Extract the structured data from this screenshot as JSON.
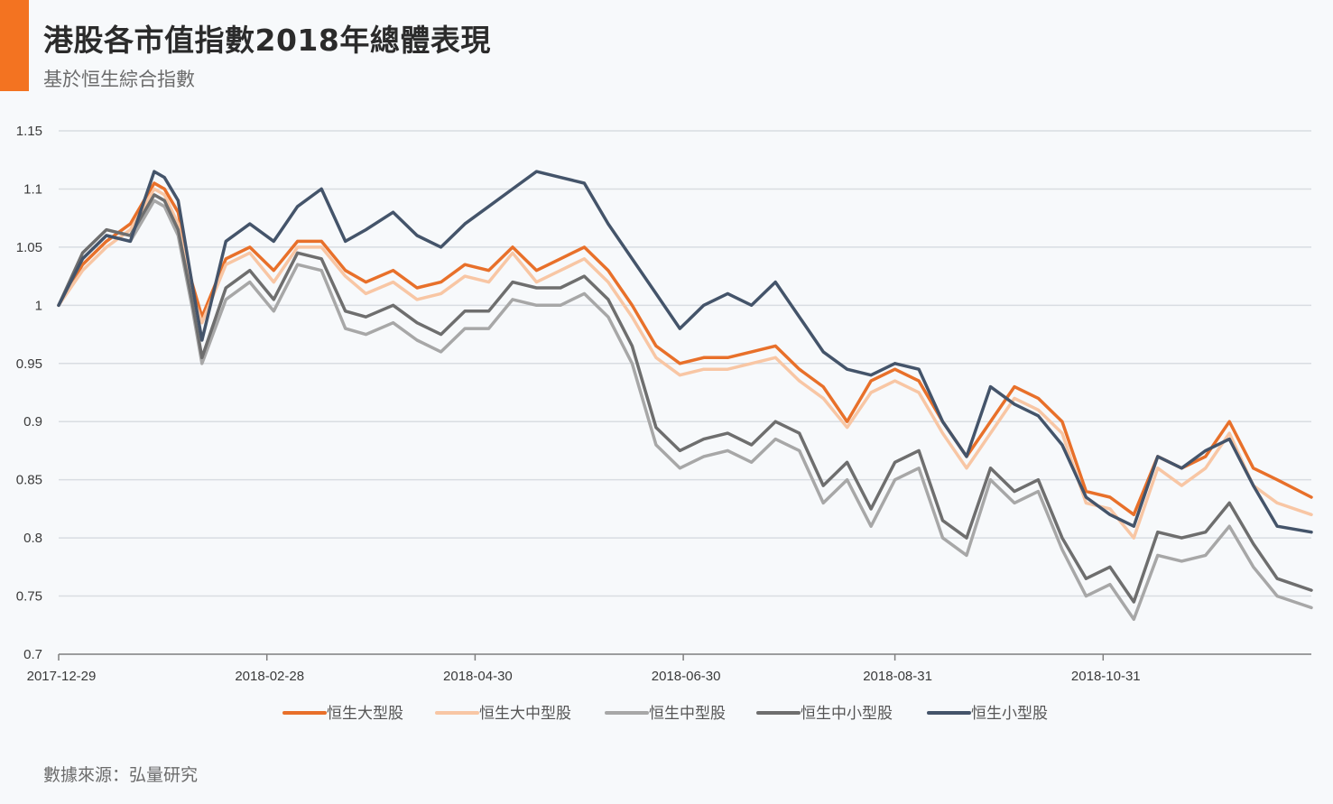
{
  "header": {
    "title": "港股各市值指數2018年總體表現",
    "subtitle": "基於恒生綜合指數"
  },
  "footer": {
    "source": "數據來源：弘量研究"
  },
  "colors": {
    "accent": "#f37321",
    "grid": "#d9dde2",
    "axis": "#7f7f7f"
  },
  "chart_data": {
    "type": "line",
    "ylim": [
      0.7,
      1.15
    ],
    "yticks": [
      0.7,
      0.75,
      0.8,
      0.85,
      0.9,
      0.95,
      1,
      1.05,
      1.1,
      1.15
    ],
    "ytick_labels": [
      "0.7",
      "0.75",
      "0.8",
      "0.85",
      "0.9",
      "0.95",
      "1",
      "1.05",
      "1.1",
      "1.15"
    ],
    "xlim": [
      "2017-12-29",
      "2018-12-31"
    ],
    "xticks": [
      "2017-12-29",
      "2018-02-28",
      "2018-04-30",
      "2018-06-30",
      "2018-08-31",
      "2018-10-31"
    ],
    "xtick_labels": [
      "2017-12-29",
      "2018-02-28",
      "2018-04-30",
      "2018-06-30",
      "2018-08-31",
      "2018-10-31"
    ],
    "grid": true,
    "legend": "bottom",
    "series": [
      {
        "name": "恒生大型股",
        "color": "#e8702a",
        "x": [
          "2017-12-29",
          "2018-01-05",
          "2018-01-12",
          "2018-01-19",
          "2018-01-26",
          "2018-01-29",
          "2018-02-02",
          "2018-02-06",
          "2018-02-09",
          "2018-02-16",
          "2018-02-23",
          "2018-03-02",
          "2018-03-09",
          "2018-03-16",
          "2018-03-23",
          "2018-03-29",
          "2018-04-06",
          "2018-04-13",
          "2018-04-20",
          "2018-04-27",
          "2018-05-04",
          "2018-05-11",
          "2018-05-18",
          "2018-05-25",
          "2018-06-01",
          "2018-06-08",
          "2018-06-15",
          "2018-06-22",
          "2018-06-29",
          "2018-07-06",
          "2018-07-13",
          "2018-07-20",
          "2018-07-27",
          "2018-08-03",
          "2018-08-10",
          "2018-08-17",
          "2018-08-24",
          "2018-08-31",
          "2018-09-07",
          "2018-09-14",
          "2018-09-21",
          "2018-09-28",
          "2018-10-05",
          "2018-10-12",
          "2018-10-19",
          "2018-10-26",
          "2018-11-02",
          "2018-11-09",
          "2018-11-16",
          "2018-11-23",
          "2018-11-30",
          "2018-12-07",
          "2018-12-14",
          "2018-12-21",
          "2018-12-31"
        ],
        "values": [
          1.0,
          1.035,
          1.055,
          1.07,
          1.105,
          1.1,
          1.08,
          1.02,
          0.99,
          1.04,
          1.05,
          1.03,
          1.055,
          1.055,
          1.03,
          1.02,
          1.03,
          1.015,
          1.02,
          1.035,
          1.03,
          1.05,
          1.03,
          1.04,
          1.05,
          1.03,
          1.0,
          0.965,
          0.95,
          0.955,
          0.955,
          0.96,
          0.965,
          0.945,
          0.93,
          0.9,
          0.935,
          0.945,
          0.935,
          0.9,
          0.87,
          0.9,
          0.93,
          0.92,
          0.9,
          0.84,
          0.835,
          0.82,
          0.87,
          0.86,
          0.87,
          0.9,
          0.86,
          0.85,
          0.835
        ]
      },
      {
        "name": "恒生大中型股",
        "color": "#f8c6a4",
        "x": [
          "2017-12-29",
          "2018-01-05",
          "2018-01-12",
          "2018-01-19",
          "2018-01-26",
          "2018-01-29",
          "2018-02-02",
          "2018-02-06",
          "2018-02-09",
          "2018-02-16",
          "2018-02-23",
          "2018-03-02",
          "2018-03-09",
          "2018-03-16",
          "2018-03-23",
          "2018-03-29",
          "2018-04-06",
          "2018-04-13",
          "2018-04-20",
          "2018-04-27",
          "2018-05-04",
          "2018-05-11",
          "2018-05-18",
          "2018-05-25",
          "2018-06-01",
          "2018-06-08",
          "2018-06-15",
          "2018-06-22",
          "2018-06-29",
          "2018-07-06",
          "2018-07-13",
          "2018-07-20",
          "2018-07-27",
          "2018-08-03",
          "2018-08-10",
          "2018-08-17",
          "2018-08-24",
          "2018-08-31",
          "2018-09-07",
          "2018-09-14",
          "2018-09-21",
          "2018-09-28",
          "2018-10-05",
          "2018-10-12",
          "2018-10-19",
          "2018-10-26",
          "2018-11-02",
          "2018-11-09",
          "2018-11-16",
          "2018-11-23",
          "2018-11-30",
          "2018-12-07",
          "2018-12-14",
          "2018-12-21",
          "2018-12-31"
        ],
        "values": [
          1.0,
          1.03,
          1.05,
          1.065,
          1.1,
          1.095,
          1.07,
          1.01,
          0.985,
          1.035,
          1.045,
          1.02,
          1.05,
          1.05,
          1.025,
          1.01,
          1.02,
          1.005,
          1.01,
          1.025,
          1.02,
          1.045,
          1.02,
          1.03,
          1.04,
          1.02,
          0.99,
          0.955,
          0.94,
          0.945,
          0.945,
          0.95,
          0.955,
          0.935,
          0.92,
          0.895,
          0.925,
          0.935,
          0.925,
          0.89,
          0.86,
          0.89,
          0.92,
          0.91,
          0.89,
          0.83,
          0.825,
          0.8,
          0.86,
          0.845,
          0.86,
          0.89,
          0.845,
          0.83,
          0.82
        ]
      },
      {
        "name": "恒生中型股",
        "color": "#a7a7a7",
        "x": [
          "2017-12-29",
          "2018-01-05",
          "2018-01-12",
          "2018-01-19",
          "2018-01-26",
          "2018-01-29",
          "2018-02-02",
          "2018-02-06",
          "2018-02-09",
          "2018-02-16",
          "2018-02-23",
          "2018-03-02",
          "2018-03-09",
          "2018-03-16",
          "2018-03-23",
          "2018-03-29",
          "2018-04-06",
          "2018-04-13",
          "2018-04-20",
          "2018-04-27",
          "2018-05-04",
          "2018-05-11",
          "2018-05-18",
          "2018-05-25",
          "2018-06-01",
          "2018-06-08",
          "2018-06-15",
          "2018-06-22",
          "2018-06-29",
          "2018-07-06",
          "2018-07-13",
          "2018-07-20",
          "2018-07-27",
          "2018-08-03",
          "2018-08-10",
          "2018-08-17",
          "2018-08-24",
          "2018-08-31",
          "2018-09-07",
          "2018-09-14",
          "2018-09-21",
          "2018-09-28",
          "2018-10-05",
          "2018-10-12",
          "2018-10-19",
          "2018-10-26",
          "2018-11-02",
          "2018-11-09",
          "2018-11-16",
          "2018-11-23",
          "2018-11-30",
          "2018-12-07",
          "2018-12-14",
          "2018-12-21",
          "2018-12-31"
        ],
        "values": [
          1.0,
          1.04,
          1.06,
          1.055,
          1.09,
          1.085,
          1.06,
          1.0,
          0.95,
          1.005,
          1.02,
          0.995,
          1.035,
          1.03,
          0.98,
          0.975,
          0.985,
          0.97,
          0.96,
          0.98,
          0.98,
          1.005,
          1.0,
          1.0,
          1.01,
          0.99,
          0.95,
          0.88,
          0.86,
          0.87,
          0.875,
          0.865,
          0.885,
          0.875,
          0.83,
          0.85,
          0.81,
          0.85,
          0.86,
          0.8,
          0.785,
          0.85,
          0.83,
          0.84,
          0.79,
          0.75,
          0.76,
          0.73,
          0.785,
          0.78,
          0.785,
          0.81,
          0.775,
          0.75,
          0.74
        ]
      },
      {
        "name": "恒生中小型股",
        "color": "#6e6e6e",
        "x": [
          "2017-12-29",
          "2018-01-05",
          "2018-01-12",
          "2018-01-19",
          "2018-01-26",
          "2018-01-29",
          "2018-02-02",
          "2018-02-06",
          "2018-02-09",
          "2018-02-16",
          "2018-02-23",
          "2018-03-02",
          "2018-03-09",
          "2018-03-16",
          "2018-03-23",
          "2018-03-29",
          "2018-04-06",
          "2018-04-13",
          "2018-04-20",
          "2018-04-27",
          "2018-05-04",
          "2018-05-11",
          "2018-05-18",
          "2018-05-25",
          "2018-06-01",
          "2018-06-08",
          "2018-06-15",
          "2018-06-22",
          "2018-06-29",
          "2018-07-06",
          "2018-07-13",
          "2018-07-20",
          "2018-07-27",
          "2018-08-03",
          "2018-08-10",
          "2018-08-17",
          "2018-08-24",
          "2018-08-31",
          "2018-09-07",
          "2018-09-14",
          "2018-09-21",
          "2018-09-28",
          "2018-10-05",
          "2018-10-12",
          "2018-10-19",
          "2018-10-26",
          "2018-11-02",
          "2018-11-09",
          "2018-11-16",
          "2018-11-23",
          "2018-11-30",
          "2018-12-07",
          "2018-12-14",
          "2018-12-21",
          "2018-12-31"
        ],
        "values": [
          1.0,
          1.045,
          1.065,
          1.06,
          1.095,
          1.09,
          1.065,
          1.005,
          0.955,
          1.015,
          1.03,
          1.005,
          1.045,
          1.04,
          0.995,
          0.99,
          1.0,
          0.985,
          0.975,
          0.995,
          0.995,
          1.02,
          1.015,
          1.015,
          1.025,
          1.005,
          0.965,
          0.895,
          0.875,
          0.885,
          0.89,
          0.88,
          0.9,
          0.89,
          0.845,
          0.865,
          0.825,
          0.865,
          0.875,
          0.815,
          0.8,
          0.86,
          0.84,
          0.85,
          0.8,
          0.765,
          0.775,
          0.745,
          0.805,
          0.8,
          0.805,
          0.83,
          0.795,
          0.765,
          0.755
        ]
      },
      {
        "name": "恒生小型股",
        "color": "#44546a",
        "x": [
          "2017-12-29",
          "2018-01-05",
          "2018-01-12",
          "2018-01-19",
          "2018-01-26",
          "2018-01-29",
          "2018-02-02",
          "2018-02-06",
          "2018-02-09",
          "2018-02-16",
          "2018-02-23",
          "2018-03-02",
          "2018-03-09",
          "2018-03-16",
          "2018-03-23",
          "2018-03-29",
          "2018-04-06",
          "2018-04-13",
          "2018-04-20",
          "2018-04-27",
          "2018-05-04",
          "2018-05-11",
          "2018-05-18",
          "2018-05-25",
          "2018-06-01",
          "2018-06-08",
          "2018-06-15",
          "2018-06-22",
          "2018-06-29",
          "2018-07-06",
          "2018-07-13",
          "2018-07-20",
          "2018-07-27",
          "2018-08-03",
          "2018-08-10",
          "2018-08-17",
          "2018-08-24",
          "2018-08-31",
          "2018-09-07",
          "2018-09-14",
          "2018-09-21",
          "2018-09-28",
          "2018-10-05",
          "2018-10-12",
          "2018-10-19",
          "2018-10-26",
          "2018-11-02",
          "2018-11-09",
          "2018-11-16",
          "2018-11-23",
          "2018-11-30",
          "2018-12-07",
          "2018-12-14",
          "2018-12-21",
          "2018-12-31"
        ],
        "values": [
          1.0,
          1.04,
          1.06,
          1.055,
          1.115,
          1.11,
          1.09,
          1.02,
          0.97,
          1.055,
          1.07,
          1.055,
          1.085,
          1.1,
          1.055,
          1.065,
          1.08,
          1.06,
          1.05,
          1.07,
          1.085,
          1.1,
          1.115,
          1.11,
          1.105,
          1.07,
          1.04,
          1.01,
          0.98,
          1.0,
          1.01,
          1.0,
          1.02,
          0.99,
          0.96,
          0.945,
          0.94,
          0.95,
          0.945,
          0.9,
          0.87,
          0.93,
          0.915,
          0.905,
          0.88,
          0.835,
          0.82,
          0.81,
          0.87,
          0.86,
          0.875,
          0.885,
          0.845,
          0.81,
          0.805
        ]
      }
    ]
  }
}
